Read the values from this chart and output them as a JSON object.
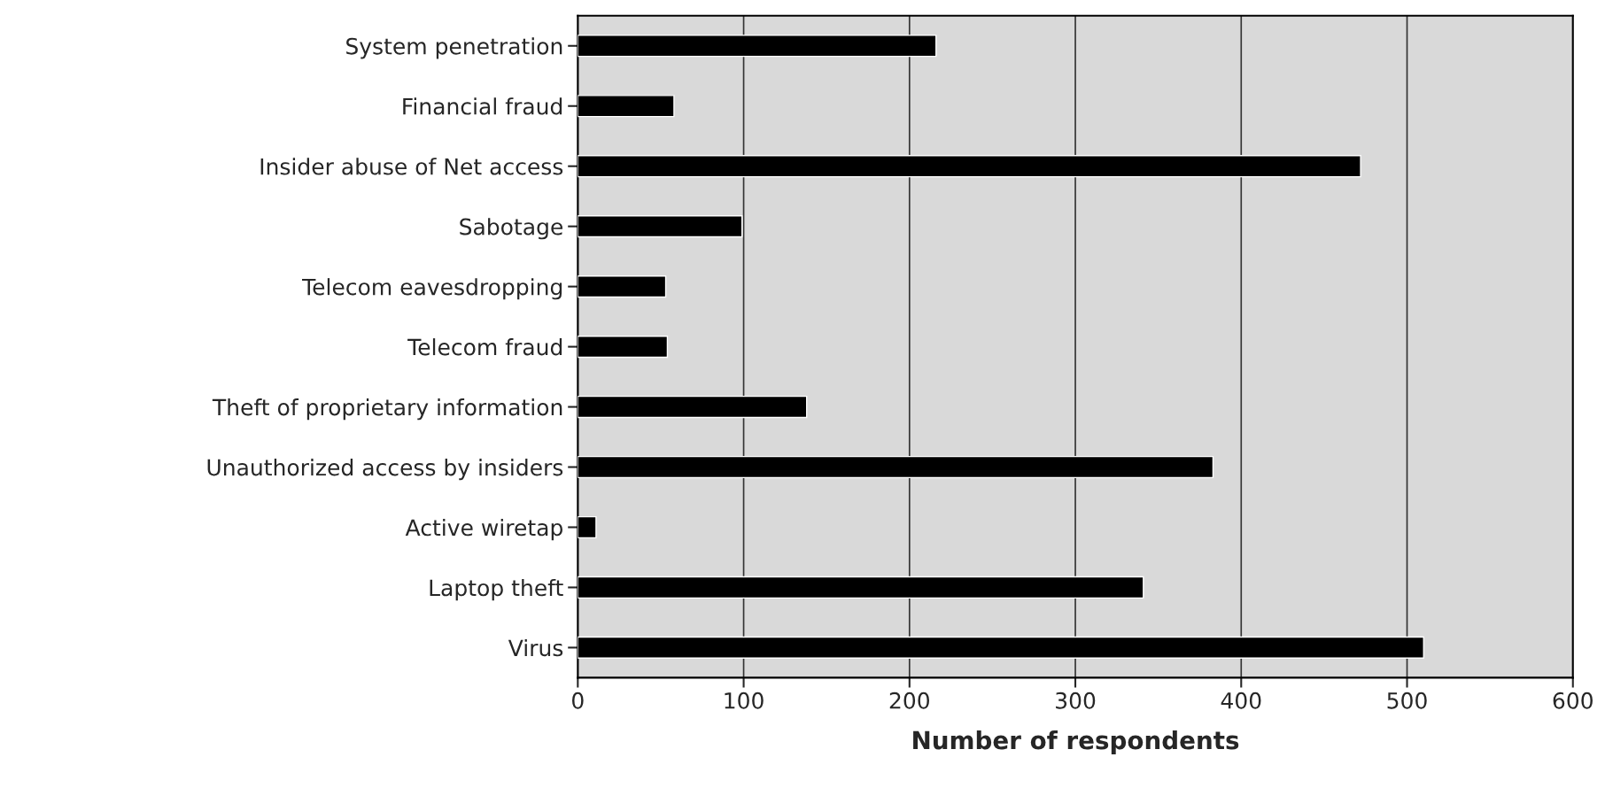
{
  "chart_data": {
    "type": "bar",
    "orientation": "horizontal",
    "xlabel": "Number of respondents",
    "categories": [
      "System penetration",
      "Financial fraud",
      "Insider abuse of Net access",
      "Sabotage",
      "Telecom eavesdropping",
      "Telecom fraud",
      "Theft of proprietary information",
      "Unauthorized access by insiders",
      "Active wiretap",
      "Laptop theft",
      "Virus"
    ],
    "values": [
      216,
      58,
      472,
      99,
      53,
      54,
      138,
      383,
      11,
      341,
      510
    ],
    "color": "#000000",
    "xlim": [
      0,
      600
    ],
    "xticks": [
      0,
      100,
      200,
      300,
      400,
      500,
      600
    ],
    "grid": "x"
  }
}
